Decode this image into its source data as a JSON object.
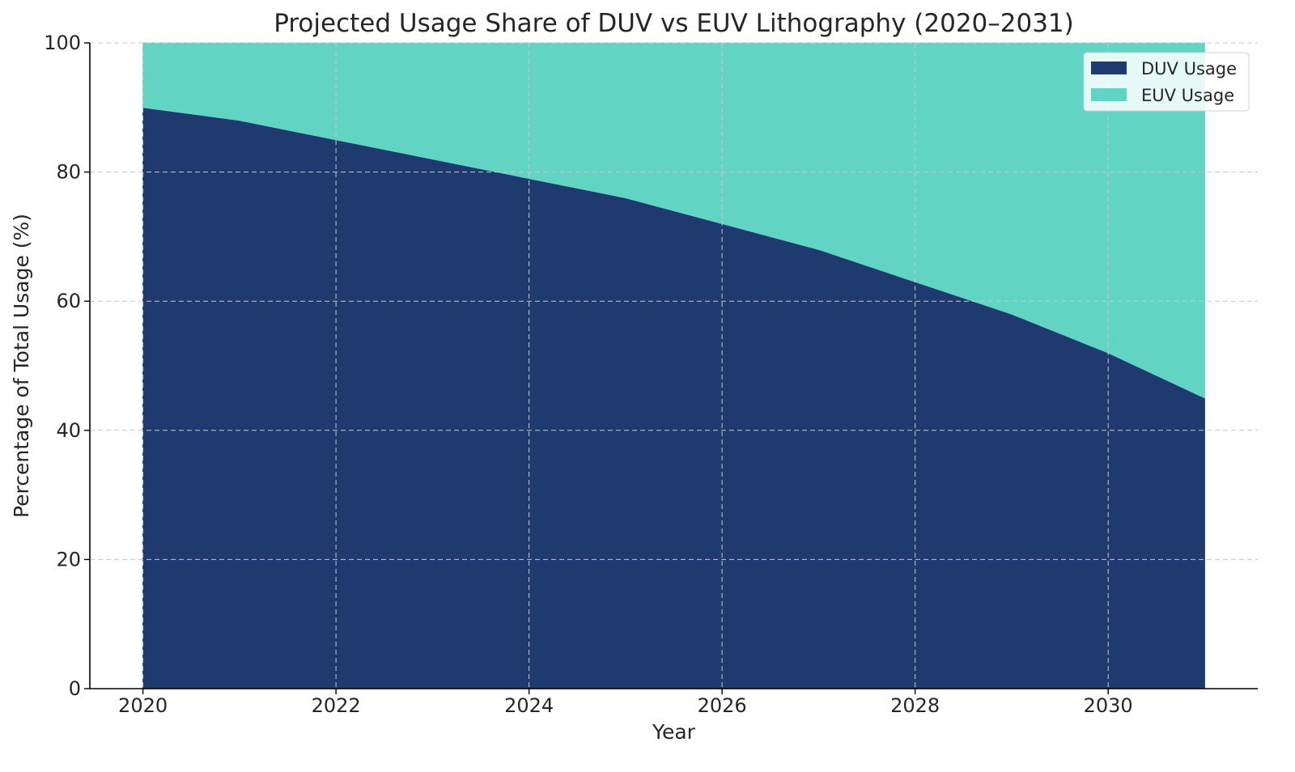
{
  "chart_data": {
    "type": "area",
    "stacked": true,
    "title": "Projected Usage Share of DUV vs EUV Lithography (2020–2031)",
    "xlabel": "Year",
    "ylabel": "Percentage of Total Usage (%)",
    "x": [
      2020,
      2021,
      2022,
      2023,
      2024,
      2025,
      2026,
      2027,
      2028,
      2029,
      2030,
      2031
    ],
    "xlim": [
      2019.45,
      2031.55
    ],
    "ylim": [
      0,
      100
    ],
    "xticks": [
      2020,
      2022,
      2024,
      2026,
      2028,
      2030
    ],
    "yticks": [
      0,
      20,
      40,
      60,
      80,
      100
    ],
    "grid": true,
    "legend_position": "top-right",
    "series": [
      {
        "name": "DUV Usage",
        "color": "#1f3a6e",
        "values": [
          90,
          88,
          85,
          82,
          79,
          76,
          72,
          68,
          63,
          58,
          52,
          45
        ]
      },
      {
        "name": "EUV Usage",
        "color": "#62d4c3",
        "values": [
          10,
          12,
          15,
          18,
          21,
          24,
          28,
          32,
          37,
          42,
          48,
          55
        ]
      }
    ]
  }
}
